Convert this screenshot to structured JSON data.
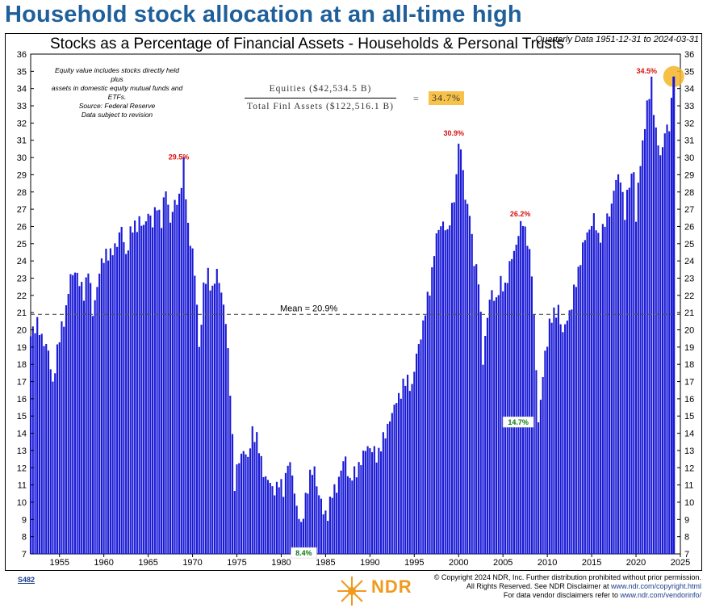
{
  "headline": "Household stock allocation at an all-time high",
  "chart_data": {
    "type": "bar",
    "title": "Stocks as a Percentage of Financial Assets - Households & Personal Trusts",
    "subtitle": "Quarterly Data 1951-12-31 to 2024-03-31",
    "ylim": [
      7,
      36
    ],
    "yticks": [
      7,
      8,
      9,
      10,
      11,
      12,
      13,
      14,
      15,
      16,
      17,
      18,
      19,
      20,
      21,
      22,
      23,
      24,
      25,
      26,
      27,
      28,
      29,
      30,
      31,
      32,
      33,
      34,
      35,
      36
    ],
    "xlim": [
      1951.75,
      2025.0
    ],
    "xticks": [
      1955,
      1960,
      1965,
      1970,
      1975,
      1980,
      1985,
      1990,
      1995,
      2000,
      2005,
      2010,
      2015,
      2020,
      2025
    ],
    "mean": 20.9,
    "mean_label": "Mean = 20.9%",
    "bar_color": "#1a1ad6",
    "keyframes": [
      [
        1951.75,
        20.0
      ],
      [
        1952.5,
        20.2
      ],
      [
        1953.25,
        19.4
      ],
      [
        1953.75,
        18.6
      ],
      [
        1954.25,
        17.0
      ],
      [
        1954.75,
        18.7
      ],
      [
        1955.25,
        20.2
      ],
      [
        1955.75,
        21.2
      ],
      [
        1956.25,
        23.0
      ],
      [
        1956.75,
        23.6
      ],
      [
        1957.25,
        22.6
      ],
      [
        1957.75,
        22.2
      ],
      [
        1958.25,
        23.5
      ],
      [
        1958.75,
        21.0
      ],
      [
        1959.25,
        22.6
      ],
      [
        1959.75,
        23.8
      ],
      [
        1960.25,
        24.6
      ],
      [
        1960.75,
        24.2
      ],
      [
        1961.5,
        25.2
      ],
      [
        1962.0,
        25.8
      ],
      [
        1962.5,
        24.4
      ],
      [
        1963.0,
        25.6
      ],
      [
        1964.0,
        26.4
      ],
      [
        1964.5,
        25.8
      ],
      [
        1965.0,
        27.0
      ],
      [
        1965.5,
        26.0
      ],
      [
        1966.0,
        27.4
      ],
      [
        1966.5,
        26.2
      ],
      [
        1967.0,
        28.2
      ],
      [
        1967.5,
        26.4
      ],
      [
        1968.0,
        27.2
      ],
      [
        1968.5,
        27.8
      ],
      [
        1969.0,
        29.5
      ],
      [
        1969.5,
        26.0
      ],
      [
        1970.0,
        24.6
      ],
      [
        1970.5,
        21.4
      ],
      [
        1970.75,
        19.0
      ],
      [
        1971.25,
        22.4
      ],
      [
        1971.75,
        23.2
      ],
      [
        1972.25,
        22.4
      ],
      [
        1972.75,
        23.2
      ],
      [
        1973.25,
        22.4
      ],
      [
        1973.75,
        20.4
      ],
      [
        1974.25,
        16.6
      ],
      [
        1974.75,
        11.0
      ],
      [
        1975.25,
        12.4
      ],
      [
        1975.75,
        13.2
      ],
      [
        1976.25,
        12.3
      ],
      [
        1976.75,
        14.3
      ],
      [
        1977.25,
        13.6
      ],
      [
        1977.75,
        12.4
      ],
      [
        1978.25,
        11.4
      ],
      [
        1978.75,
        11.0
      ],
      [
        1979.25,
        10.8
      ],
      [
        1979.75,
        11.0
      ],
      [
        1980.25,
        10.8
      ],
      [
        1980.75,
        12.3
      ],
      [
        1981.25,
        11.6
      ],
      [
        1981.75,
        9.8
      ],
      [
        1982.25,
        8.4
      ],
      [
        1982.75,
        10.4
      ],
      [
        1983.25,
        11.4
      ],
      [
        1983.75,
        12.0
      ],
      [
        1984.25,
        10.4
      ],
      [
        1984.75,
        9.4
      ],
      [
        1985.25,
        9.4
      ],
      [
        1985.75,
        10.4
      ],
      [
        1986.25,
        11.0
      ],
      [
        1986.75,
        11.8
      ],
      [
        1987.25,
        12.6
      ],
      [
        1987.75,
        11.2
      ],
      [
        1988.25,
        11.6
      ],
      [
        1988.75,
        12.2
      ],
      [
        1989.25,
        12.6
      ],
      [
        1989.75,
        13.4
      ],
      [
        1990.25,
        13.0
      ],
      [
        1990.75,
        12.6
      ],
      [
        1991.25,
        13.4
      ],
      [
        1991.75,
        13.8
      ],
      [
        1992.25,
        15.0
      ],
      [
        1992.75,
        15.4
      ],
      [
        1993.25,
        16.2
      ],
      [
        1993.75,
        16.8
      ],
      [
        1994.25,
        17.0
      ],
      [
        1994.75,
        16.8
      ],
      [
        1995.25,
        18.4
      ],
      [
        1995.75,
        19.8
      ],
      [
        1996.25,
        21.0
      ],
      [
        1996.75,
        22.4
      ],
      [
        1997.25,
        24.6
      ],
      [
        1997.75,
        25.8
      ],
      [
        1998.25,
        26.4
      ],
      [
        1998.75,
        25.4
      ],
      [
        1999.25,
        27.2
      ],
      [
        1999.75,
        28.6
      ],
      [
        2000.0,
        30.9
      ],
      [
        2000.5,
        29.6
      ],
      [
        2000.75,
        27.6
      ],
      [
        2001.25,
        26.6
      ],
      [
        2001.75,
        24.2
      ],
      [
        2002.25,
        22.8
      ],
      [
        2002.75,
        18.4
      ],
      [
        2003.25,
        20.8
      ],
      [
        2003.75,
        22.2
      ],
      [
        2004.25,
        21.8
      ],
      [
        2004.75,
        22.6
      ],
      [
        2005.25,
        22.6
      ],
      [
        2005.75,
        23.6
      ],
      [
        2006.25,
        24.6
      ],
      [
        2006.75,
        25.6
      ],
      [
        2007.25,
        26.2
      ],
      [
        2007.75,
        25.4
      ],
      [
        2008.25,
        23.2
      ],
      [
        2008.75,
        18.0
      ],
      [
        2009.0,
        14.7
      ],
      [
        2009.25,
        15.8
      ],
      [
        2009.75,
        18.6
      ],
      [
        2010.25,
        20.4
      ],
      [
        2010.75,
        20.8
      ],
      [
        2011.25,
        21.4
      ],
      [
        2011.75,
        19.6
      ],
      [
        2012.25,
        20.8
      ],
      [
        2012.75,
        21.4
      ],
      [
        2013.25,
        22.8
      ],
      [
        2013.75,
        24.2
      ],
      [
        2014.25,
        25.2
      ],
      [
        2014.75,
        26.0
      ],
      [
        2015.25,
        26.4
      ],
      [
        2015.75,
        25.4
      ],
      [
        2016.25,
        25.8
      ],
      [
        2016.75,
        26.4
      ],
      [
        2017.25,
        27.4
      ],
      [
        2017.75,
        28.6
      ],
      [
        2018.25,
        29.0
      ],
      [
        2018.75,
        26.6
      ],
      [
        2019.25,
        28.6
      ],
      [
        2019.75,
        29.4
      ],
      [
        2020.0,
        26.0
      ],
      [
        2020.25,
        28.4
      ],
      [
        2020.75,
        31.0
      ],
      [
        2021.25,
        32.8
      ],
      [
        2021.75,
        34.5
      ],
      [
        2022.25,
        31.4
      ],
      [
        2022.75,
        30.0
      ],
      [
        2023.25,
        31.6
      ],
      [
        2023.75,
        31.6
      ],
      [
        2024.0,
        33.2
      ],
      [
        2024.25,
        34.7
      ]
    ],
    "annotations": [
      {
        "label": "29.5%",
        "year": 1969.0,
        "value": 29.5,
        "color": "#d81010",
        "style": "plain"
      },
      {
        "label": "30.9%",
        "year": 2000.0,
        "value": 30.9,
        "color": "#d81010",
        "style": "plain"
      },
      {
        "label": "26.2%",
        "year": 2007.5,
        "value": 26.2,
        "color": "#d81010",
        "style": "plain"
      },
      {
        "label": "34.5%",
        "year": 2021.75,
        "value": 34.5,
        "color": "#d81010",
        "style": "plain"
      },
      {
        "label": "8.4%",
        "year": 1982.0,
        "value": 8.4,
        "color": "#0a7a10",
        "style": "box-below"
      },
      {
        "label": "14.7%",
        "year": 2009.0,
        "value": 14.7,
        "color": "#0a7a10",
        "style": "box-left"
      }
    ],
    "highlight": {
      "year": 2024.25,
      "value": 34.7,
      "color": "#f5b427"
    }
  },
  "note_lines": [
    "Equity value includes stocks directly held plus",
    "assets in domestic equity mutual funds and ETFs.",
    "Source: Federal Reserve",
    "Data subject to revision"
  ],
  "fraction": {
    "numerator": "Equities ($42,534.5 B)",
    "denominator": "Total Finl Assets ($122,516.1 B)",
    "equals": "=",
    "result": "34.7%"
  },
  "footer": {
    "code": "S482",
    "logo_text": "NDR",
    "line1": "© Copyright 2024 NDR, Inc. Further distribution prohibited without prior permission.",
    "line2_prefix": "All Rights Reserved. See NDR Disclaimer at ",
    "line2_link": "www.ndr.com/copyright.html",
    "line3_prefix": "For data vendor disclaimers refer to ",
    "line3_link": "www.ndr.com/vendorinfo/"
  }
}
